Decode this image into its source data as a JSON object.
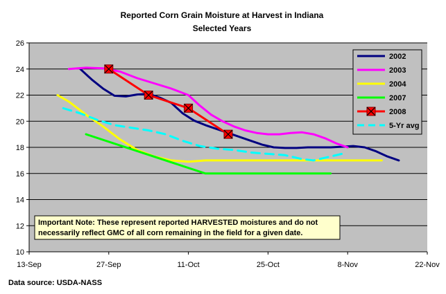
{
  "chart_data": {
    "type": "line",
    "title": "Reported Corn Grain Moisture at Harvest in Indiana",
    "subtitle": "Selected Years",
    "source": "Data source: USDA-NASS",
    "note_line1": "Important Note: These represent reported HARVESTED moistures and do not",
    "note_line2": "necessarily reflect GMC of all corn remaining in the field for a given date.",
    "xlim": [
      0,
      70
    ],
    "ylim": [
      10,
      26
    ],
    "x_ticks": [
      {
        "x": 0,
        "label": "13-Sep"
      },
      {
        "x": 14,
        "label": "27-Sep"
      },
      {
        "x": 28,
        "label": "11-Oct"
      },
      {
        "x": 42,
        "label": "25-Oct"
      },
      {
        "x": 56,
        "label": "8-Nov"
      },
      {
        "x": 70,
        "label": "22-Nov"
      }
    ],
    "y_ticks": [
      10,
      12,
      14,
      16,
      18,
      20,
      22,
      24,
      26
    ],
    "plot_bg": "#c0c0c0",
    "legend_position": "top-right",
    "series": [
      {
        "name": "2002",
        "color": "#000080",
        "dash": "solid",
        "marker": "none",
        "points": [
          [
            9,
            24
          ],
          [
            11,
            23.2
          ],
          [
            13,
            22.5
          ],
          [
            15,
            21.95
          ],
          [
            17,
            21.9
          ],
          [
            19,
            22.05
          ],
          [
            21,
            22.1
          ],
          [
            23,
            21.8
          ],
          [
            25,
            21.4
          ],
          [
            27,
            20.6
          ],
          [
            29,
            20.05
          ],
          [
            31,
            19.7
          ],
          [
            33,
            19.4
          ],
          [
            35,
            19.1
          ],
          [
            37,
            18.8
          ],
          [
            39,
            18.5
          ],
          [
            41,
            18.2
          ],
          [
            43,
            18.0
          ],
          [
            45,
            17.95
          ],
          [
            47,
            17.95
          ],
          [
            49,
            18.0
          ],
          [
            51,
            18.0
          ],
          [
            53,
            18.0
          ],
          [
            55,
            18.05
          ],
          [
            57,
            18.1
          ],
          [
            59,
            18.0
          ],
          [
            61,
            17.7
          ],
          [
            63,
            17.3
          ],
          [
            65,
            17.0
          ]
        ]
      },
      {
        "name": "2003",
        "color": "#ff00ff",
        "dash": "solid",
        "marker": "none",
        "points": [
          [
            7,
            24
          ],
          [
            10,
            24.1
          ],
          [
            13,
            24.05
          ],
          [
            16,
            23.8
          ],
          [
            19,
            23.3
          ],
          [
            22,
            22.9
          ],
          [
            25,
            22.5
          ],
          [
            28,
            22.0
          ],
          [
            30,
            21.2
          ],
          [
            32,
            20.5
          ],
          [
            34,
            20.0
          ],
          [
            36,
            19.6
          ],
          [
            38,
            19.3
          ],
          [
            40,
            19.1
          ],
          [
            42,
            19.0
          ],
          [
            44,
            19.0
          ],
          [
            46,
            19.1
          ],
          [
            48,
            19.15
          ],
          [
            50,
            19.0
          ],
          [
            52,
            18.7
          ],
          [
            54,
            18.3
          ],
          [
            56,
            18.0
          ]
        ]
      },
      {
        "name": "2004",
        "color": "#ffff00",
        "dash": "solid",
        "marker": "none",
        "points": [
          [
            5,
            22
          ],
          [
            7,
            21.5
          ],
          [
            10,
            20.5
          ],
          [
            13,
            19.6
          ],
          [
            16,
            18.6
          ],
          [
            19,
            17.8
          ],
          [
            22,
            17.3
          ],
          [
            25,
            17.0
          ],
          [
            28,
            16.9
          ],
          [
            31,
            17.0
          ],
          [
            36,
            17.0
          ],
          [
            45,
            17.0
          ],
          [
            55,
            17.0
          ],
          [
            62,
            17.0
          ]
        ]
      },
      {
        "name": "2007",
        "color": "#00ff00",
        "dash": "solid",
        "marker": "none",
        "points": [
          [
            10,
            19
          ],
          [
            31,
            16
          ],
          [
            53,
            16
          ]
        ]
      },
      {
        "name": "2008",
        "color": "#ff0000",
        "dash": "solid",
        "marker": "xbox",
        "points": [
          [
            14,
            24
          ],
          [
            21,
            22
          ],
          [
            28,
            21
          ],
          [
            35,
            19
          ]
        ]
      },
      {
        "name": "5-Yr avg",
        "color": "#00ffff",
        "dash": "dashed",
        "marker": "none",
        "points": [
          [
            6,
            21
          ],
          [
            9,
            20.6
          ],
          [
            12,
            20.1
          ],
          [
            15,
            19.7
          ],
          [
            18,
            19.5
          ],
          [
            21,
            19.3
          ],
          [
            24,
            19.0
          ],
          [
            27,
            18.5
          ],
          [
            30,
            18.1
          ],
          [
            33,
            17.9
          ],
          [
            36,
            17.8
          ],
          [
            39,
            17.6
          ],
          [
            42,
            17.5
          ],
          [
            45,
            17.4
          ],
          [
            48,
            17.1
          ],
          [
            50,
            17.0
          ],
          [
            52,
            17.2
          ],
          [
            55,
            17.5
          ]
        ]
      }
    ]
  }
}
